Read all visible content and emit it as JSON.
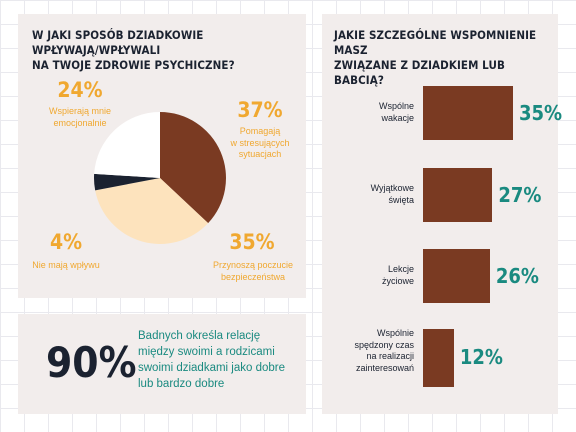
{
  "pie_panel": {
    "title": "W JAKI SPOSÓB DZIADKOWIE WPŁYWAJĄ/WPŁYWALI\nNA TWOJE ZDROWIE PSYCHICZNE?"
  },
  "bars_panel": {
    "title": "JAKIE SZCZEGÓLNE WSPOMNIENIE MASZ\nZWIĄZANE Z DZIADKIEM LUB BABCIĄ?"
  },
  "stat_panel": {
    "value": "90%",
    "text": "Badnych określa relację\nmiędzy swoimi a rodzicami\nswoimi dziadkami jako dobre\nlub bardzo dobre"
  },
  "colors": {
    "brown": "#7a3a22",
    "peach": "#fde3bd",
    "navy": "#1b2230",
    "white": "#ffffff",
    "orange": "#f0a830",
    "teal": "#1a8a80"
  },
  "chart_data": [
    {
      "type": "pie",
      "slices": [
        {
          "label": "Pomagają\nw stresujących\nsytuacjach",
          "value": 37,
          "value_label": "37%",
          "color": "#7a3a22"
        },
        {
          "label": "Przynoszą poczucie\nbezpieczeństwa",
          "value": 35,
          "value_label": "35%",
          "color": "#fde3bd"
        },
        {
          "label": "Nie mają wpływu",
          "value": 4,
          "value_label": "4%",
          "color": "#1b2230"
        },
        {
          "label": "Wspierają mnie\nemocjonalnie",
          "value": 24,
          "value_label": "24%",
          "color": "#ffffff"
        }
      ]
    },
    {
      "type": "bar",
      "orientation": "horizontal",
      "categories": [
        "Wspólne\nwakacje",
        "Wyjątkowe\nświęta",
        "Lekcje\nżyciowe",
        "Wspólnie\nspędzony czas\nna realizacji\nzainteresowań"
      ],
      "values": [
        35,
        27,
        26,
        12
      ],
      "value_labels": [
        "35%",
        "27%",
        "26%",
        "12%"
      ],
      "xlim": [
        0,
        35
      ]
    }
  ]
}
